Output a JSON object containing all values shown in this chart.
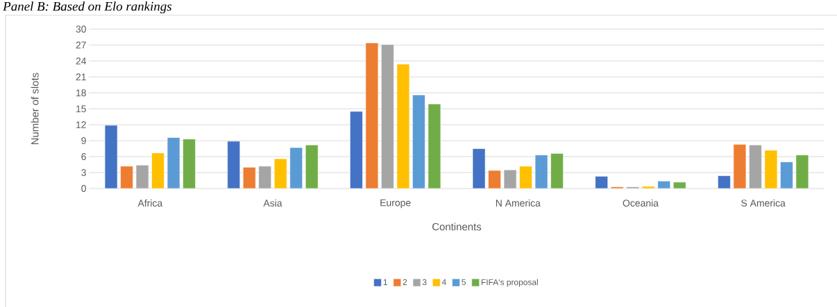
{
  "chart_data": {
    "type": "bar",
    "title": "Panel B: Based on Elo rankings",
    "xlabel": "Continents",
    "ylabel": "Number of slots",
    "categories": [
      "Africa",
      "Asia",
      "Europe",
      "N America",
      "Oceania",
      "S America"
    ],
    "series": [
      {
        "name": "1",
        "color": "#4472c4",
        "values": [
          11.9,
          8.9,
          14.5,
          7.5,
          2.3,
          2.4
        ]
      },
      {
        "name": "2",
        "color": "#ed7d31",
        "values": [
          4.2,
          4.0,
          27.4,
          3.4,
          0.3,
          8.3
        ]
      },
      {
        "name": "3",
        "color": "#a5a5a5",
        "values": [
          4.4,
          4.2,
          27.1,
          3.5,
          0.3,
          8.2
        ]
      },
      {
        "name": "4",
        "color": "#ffc000",
        "values": [
          6.7,
          5.6,
          23.4,
          4.2,
          0.4,
          7.2
        ]
      },
      {
        "name": "5",
        "color": "#5b9bd5",
        "values": [
          9.6,
          7.7,
          17.6,
          6.3,
          1.4,
          5.0
        ]
      },
      {
        "name": "FIFA's proposal",
        "color": "#70ad47",
        "values": [
          9.3,
          8.2,
          15.9,
          6.6,
          1.2,
          6.3
        ]
      }
    ],
    "ylim": [
      0,
      30
    ],
    "yticks": [
      0,
      3,
      6,
      9,
      12,
      15,
      18,
      21,
      24,
      27,
      30
    ],
    "grid": "y",
    "legend": "bottom"
  }
}
